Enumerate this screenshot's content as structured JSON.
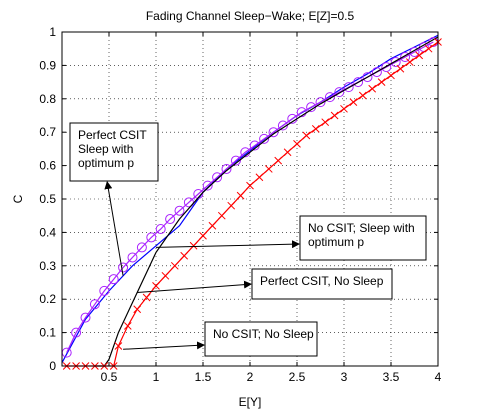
{
  "chart_data": {
    "type": "line",
    "title": "Fading Channel Sleep−Wake; E[Z]=0.5",
    "xlabel": "E[Y]",
    "ylabel": "C",
    "xlim": [
      0,
      4
    ],
    "ylim": [
      0,
      1
    ],
    "grid": true,
    "xticks": [
      0.5,
      1,
      1.5,
      2,
      2.5,
      3,
      3.5,
      4
    ],
    "xtick_labels": [
      "0.5",
      "1",
      "1.5",
      "2",
      "2.5",
      "3",
      "3.5",
      "4"
    ],
    "yticks": [
      0,
      0.1,
      0.2,
      0.3,
      0.4,
      0.5,
      0.6,
      0.7,
      0.8,
      0.9,
      1
    ],
    "ytick_labels": [
      "0",
      "0.1",
      "0.2",
      "0.3",
      "0.4",
      "0.5",
      "0.6",
      "0.7",
      "0.8",
      "0.9",
      "1"
    ],
    "series": [
      {
        "color": "#0000ff",
        "marker": "none",
        "x": [
          0,
          0.25,
          0.5,
          0.75,
          1,
          1.25,
          1.5,
          1.75,
          2,
          2.25,
          2.5,
          2.75,
          3,
          3.25,
          3.5,
          3.75,
          4
        ],
        "y": [
          0.01,
          0.14,
          0.225,
          0.3,
          0.36,
          0.42,
          0.52,
          0.59,
          0.645,
          0.7,
          0.75,
          0.79,
          0.835,
          0.875,
          0.92,
          0.955,
          0.99
        ]
      },
      {
        "color": "#aa22ff",
        "marker": "circle",
        "x": [
          0.05,
          0.15,
          0.25,
          0.35,
          0.45,
          0.55,
          0.65,
          0.75,
          0.85,
          0.95,
          1.05,
          1.15,
          1.25,
          1.35,
          1.45,
          1.55,
          1.65,
          1.75,
          1.85,
          1.95,
          2.05,
          2.15,
          2.25,
          2.35,
          2.45,
          2.55,
          2.65,
          2.75,
          2.85,
          2.95,
          3.05,
          3.15,
          3.25,
          3.35,
          3.45,
          3.55,
          3.65,
          3.75,
          3.85,
          3.95
        ],
        "y": [
          0.04,
          0.1,
          0.145,
          0.185,
          0.225,
          0.26,
          0.295,
          0.325,
          0.355,
          0.385,
          0.41,
          0.44,
          0.465,
          0.49,
          0.515,
          0.54,
          0.565,
          0.59,
          0.615,
          0.64,
          0.66,
          0.68,
          0.7,
          0.72,
          0.74,
          0.76,
          0.775,
          0.79,
          0.805,
          0.82,
          0.835,
          0.85,
          0.865,
          0.88,
          0.895,
          0.91,
          0.925,
          0.94,
          0.955,
          0.97
        ]
      },
      {
        "color": "#000000",
        "marker": "none",
        "x": [
          0.35,
          0.45,
          0.5,
          0.6,
          0.75,
          0.9,
          1,
          1.25,
          1.5,
          1.75,
          2,
          2.25,
          2.5,
          2.75,
          3,
          3.25,
          3.5,
          3.75,
          4
        ],
        "y": [
          0,
          0,
          0.02,
          0.1,
          0.19,
          0.28,
          0.34,
          0.44,
          0.52,
          0.585,
          0.64,
          0.695,
          0.74,
          0.785,
          0.825,
          0.865,
          0.905,
          0.945,
          0.985
        ]
      },
      {
        "color": "#ff0000",
        "marker": "x",
        "x": [
          0.05,
          0.15,
          0.25,
          0.35,
          0.45,
          0.55,
          0.6,
          0.7,
          0.8,
          0.9,
          1,
          1.1,
          1.2,
          1.3,
          1.4,
          1.5,
          1.6,
          1.7,
          1.8,
          1.9,
          2,
          2.1,
          2.2,
          2.3,
          2.4,
          2.5,
          2.6,
          2.7,
          2.8,
          2.9,
          3,
          3.1,
          3.2,
          3.3,
          3.4,
          3.5,
          3.6,
          3.7,
          3.8,
          3.9,
          4
        ],
        "y": [
          0,
          0,
          0,
          0,
          0,
          0,
          0.06,
          0.12,
          0.17,
          0.205,
          0.24,
          0.27,
          0.3,
          0.33,
          0.36,
          0.39,
          0.42,
          0.45,
          0.48,
          0.51,
          0.54,
          0.565,
          0.59,
          0.615,
          0.64,
          0.665,
          0.69,
          0.71,
          0.73,
          0.75,
          0.77,
          0.79,
          0.81,
          0.83,
          0.85,
          0.87,
          0.89,
          0.91,
          0.93,
          0.95,
          0.97
        ]
      }
    ],
    "annotations": [
      {
        "lines": [
          "Perfect CSIT",
          "Sleep with",
          "optimum p"
        ],
        "arrow_to": [
          0.65,
          0.27
        ]
      },
      {
        "lines": [
          "No CSIT; Sleep with",
          "optimum p"
        ],
        "arrow_to": [
          1.0,
          0.355
        ]
      },
      {
        "lines": [
          "Perfect CSIT, No Sleep"
        ],
        "arrow_to": [
          0.8,
          0.22
        ]
      },
      {
        "lines": [
          "No CSIT; No Sleep"
        ],
        "arrow_to": [
          0.65,
          0.05
        ]
      }
    ]
  }
}
